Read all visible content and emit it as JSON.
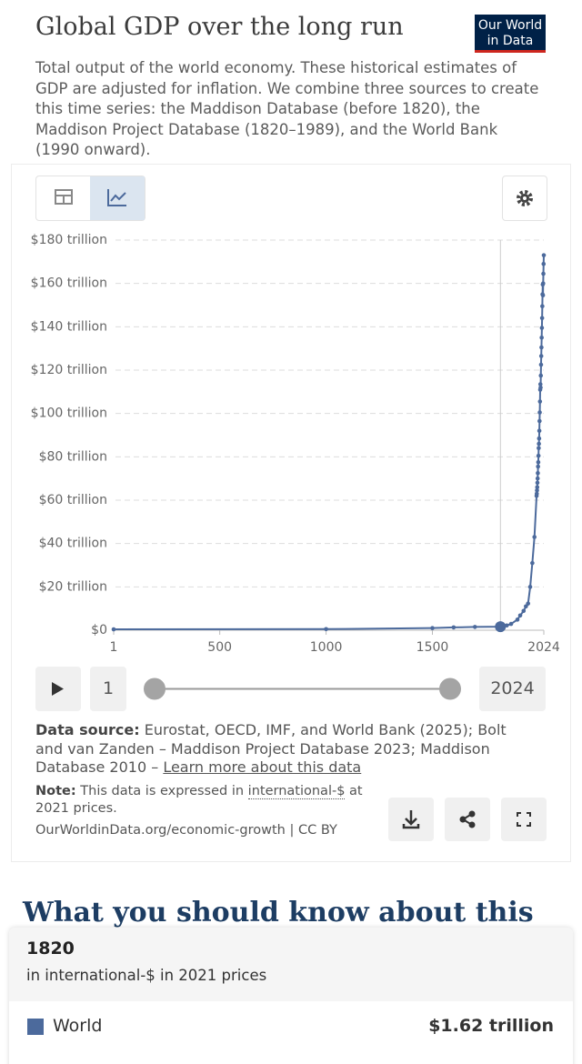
{
  "header": {
    "title": "Global GDP over the long run",
    "logo": [
      "Our World",
      "in Data"
    ],
    "subtitle": "Total output of the world economy. These historical estimates of GDP are adjusted for inflation. We combine three sources to create this time series: the Maddison Database (before 1820), the Maddison Project Database (1820–1989), and the World Bank (1990 onward)."
  },
  "chart_data": {
    "type": "line",
    "x": [
      1,
      1000,
      1500,
      1600,
      1700,
      1820,
      1850,
      1870,
      1900,
      1913,
      1929,
      1940,
      1950,
      1960,
      1970,
      1980,
      1990,
      1991,
      1992,
      1993,
      1994,
      1995,
      1996,
      1997,
      1998,
      1999,
      2000,
      2001,
      2002,
      2003,
      2004,
      2005,
      2006,
      2007,
      2008,
      2009,
      2010,
      2011,
      2012,
      2013,
      2014,
      2015,
      2016,
      2017,
      2018,
      2019,
      2020,
      2021,
      2022,
      2023,
      2024
    ],
    "series": [
      {
        "name": "World",
        "color": "#4c6a9c",
        "values": [
          0.4,
          0.5,
          1.0,
          1.3,
          1.5,
          1.62,
          2.2,
          2.9,
          4.9,
          6.8,
          8.9,
          11,
          12.3,
          20,
          31,
          43,
          62,
          63,
          64.5,
          66,
          68,
          70,
          72.5,
          75.5,
          77.5,
          80.5,
          84,
          86,
          88.5,
          92,
          96.5,
          100.5,
          105.5,
          111,
          113.5,
          112,
          117.5,
          122.5,
          126.5,
          130.5,
          135,
          139.5,
          144,
          149.5,
          155,
          159.5,
          154.5,
          160,
          164.5,
          169,
          173
        ]
      }
    ],
    "xlim": [
      1,
      2024
    ],
    "xticks": [
      1,
      500,
      1000,
      1500,
      2024
    ],
    "ylim": [
      0,
      180
    ],
    "yticks": [
      {
        "value": 0,
        "label": "$0"
      },
      {
        "value": 20,
        "label": "$20 trillion"
      },
      {
        "value": 40,
        "label": "$40 trillion"
      },
      {
        "value": 60,
        "label": "$60 trillion"
      },
      {
        "value": 80,
        "label": "$80 trillion"
      },
      {
        "value": 100,
        "label": "$100 trillion"
      },
      {
        "value": 120,
        "label": "$120 trillion"
      },
      {
        "value": 140,
        "label": "$140 trillion"
      },
      {
        "value": 160,
        "label": "$160 trillion"
      },
      {
        "value": 180,
        "label": "$180 trillion"
      }
    ],
    "grid": true,
    "highlight": 1820,
    "tooltip": {
      "unit": "in international-$ in 2021 prices",
      "value_label": "$1.62 trillion"
    }
  },
  "timeline": {
    "start": "1",
    "end": "2024"
  },
  "footer": {
    "source_label": "Data source:",
    "source": "Eurostat, OECD, IMF, and World Bank (2025); Bolt and van Zanden – Maddison Project Database 2023; Maddison Database 2010 – ",
    "learn_more": "Learn more about this data",
    "note_label": "Note:",
    "note_before": "This data is expressed in ",
    "note_link": "international-$",
    "note_after": " at 2021 prices.",
    "url": "OurWorldinData.org/economic-growth | CC BY"
  },
  "section": {
    "heading": "What you should know about this"
  }
}
